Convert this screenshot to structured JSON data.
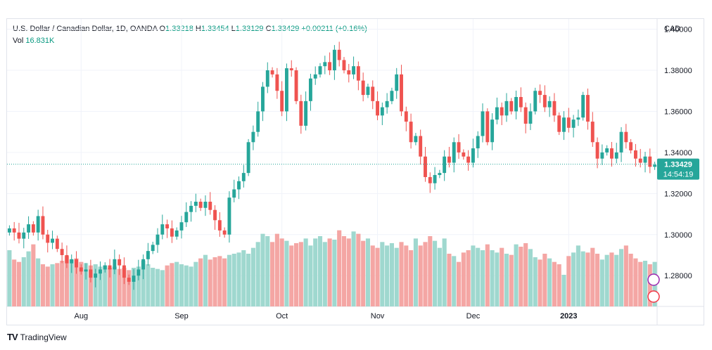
{
  "header": {
    "symbol": "U.S. Dollar / Canadian Dollar, 1D, OANDA",
    "o_label": "O",
    "o_value": "1.33218",
    "h_label": "H",
    "h_value": "1.33454",
    "l_label": "L",
    "l_value": "1.33129",
    "c_label": "C",
    "c_value": "1.33429",
    "change": "+0.00211 (+0.16%)",
    "vol_label": "Vol",
    "vol_value": "16.831K"
  },
  "footer": {
    "brand": "TradingView",
    "logo": "TV"
  },
  "colors": {
    "up": "#26a69a",
    "down": "#ef5350",
    "vol_up": "#9fd8cf",
    "vol_down": "#f4a6a4",
    "grid": "#f0f3fa",
    "text": "#131722"
  },
  "price_badge": {
    "price": "1.33429",
    "countdown": "14:54:19"
  },
  "chart_data": {
    "type": "candlestick",
    "currency": "CAD",
    "ylim": [
      1.265,
      1.405
    ],
    "yticks": [
      "1.40000",
      "1.38000",
      "1.36000",
      "1.34000",
      "1.32000",
      "1.30000",
      "1.28000"
    ],
    "xticks": [
      {
        "label": "Aug",
        "index": 15
      },
      {
        "label": "Sep",
        "index": 36
      },
      {
        "label": "Oct",
        "index": 57
      },
      {
        "label": "Nov",
        "index": 77
      },
      {
        "label": "Dec",
        "index": 97
      },
      {
        "label": "2023",
        "index": 117
      }
    ],
    "last_price": 1.33429,
    "closes": [
      1.303,
      1.301,
      1.298,
      1.301,
      1.305,
      1.301,
      1.309,
      1.3,
      1.296,
      1.298,
      1.293,
      1.29,
      1.286,
      1.288,
      1.284,
      1.282,
      1.283,
      1.279,
      1.281,
      1.283,
      1.285,
      1.283,
      1.288,
      1.285,
      1.279,
      1.277,
      1.28,
      1.283,
      1.288,
      1.292,
      1.295,
      1.3,
      1.305,
      1.303,
      1.299,
      1.302,
      1.306,
      1.311,
      1.314,
      1.316,
      1.313,
      1.316,
      1.312,
      1.307,
      1.302,
      1.3,
      1.318,
      1.322,
      1.326,
      1.33,
      1.345,
      1.35,
      1.36,
      1.372,
      1.38,
      1.378,
      1.37,
      1.36,
      1.381,
      1.38,
      1.365,
      1.353,
      1.365,
      1.376,
      1.378,
      1.382,
      1.384,
      1.38,
      1.39,
      1.385,
      1.38,
      1.378,
      1.382,
      1.375,
      1.368,
      1.372,
      1.365,
      1.358,
      1.362,
      1.365,
      1.37,
      1.378,
      1.36,
      1.355,
      1.345,
      1.348,
      1.338,
      1.328,
      1.325,
      1.329,
      1.33,
      1.338,
      1.335,
      1.345,
      1.34,
      1.338,
      1.335,
      1.342,
      1.348,
      1.36,
      1.345,
      1.356,
      1.362,
      1.358,
      1.365,
      1.36,
      1.367,
      1.362,
      1.354,
      1.36,
      1.37,
      1.368,
      1.362,
      1.365,
      1.358,
      1.35,
      1.357,
      1.352,
      1.356,
      1.357,
      1.368,
      1.355,
      1.345,
      1.337,
      1.34,
      1.342,
      1.337,
      1.34,
      1.35,
      1.345,
      1.341,
      1.337,
      1.335,
      1.338,
      1.333,
      1.334
    ],
    "volumes": [
      0.48,
      0.4,
      0.38,
      0.42,
      0.47,
      0.53,
      0.41,
      0.36,
      0.34,
      0.36,
      0.37,
      0.39,
      0.43,
      0.4,
      0.41,
      0.38,
      0.37,
      0.35,
      0.36,
      0.34,
      0.35,
      0.33,
      0.34,
      0.32,
      0.33,
      0.31,
      0.33,
      0.34,
      0.39,
      0.36,
      0.33,
      0.32,
      0.31,
      0.35,
      0.37,
      0.38,
      0.36,
      0.35,
      0.34,
      0.38,
      0.41,
      0.44,
      0.4,
      0.42,
      0.43,
      0.41,
      0.44,
      0.45,
      0.46,
      0.48,
      0.45,
      0.5,
      0.55,
      0.62,
      0.6,
      0.55,
      0.62,
      0.58,
      0.56,
      0.52,
      0.54,
      0.55,
      0.58,
      0.52,
      0.58,
      0.6,
      0.55,
      0.58,
      0.57,
      0.65,
      0.6,
      0.58,
      0.64,
      0.62,
      0.56,
      0.58,
      0.52,
      0.5,
      0.55,
      0.52,
      0.54,
      0.5,
      0.55,
      0.52,
      0.48,
      0.58,
      0.52,
      0.55,
      0.6,
      0.56,
      0.5,
      0.58,
      0.45,
      0.43,
      0.38,
      0.46,
      0.48,
      0.52,
      0.5,
      0.48,
      0.53,
      0.48,
      0.46,
      0.5,
      0.45,
      0.44,
      0.53,
      0.51,
      0.54,
      0.49,
      0.42,
      0.4,
      0.45,
      0.41,
      0.38,
      0.36,
      0.27,
      0.43,
      0.46,
      0.52,
      0.47,
      0.46,
      0.5,
      0.45,
      0.4,
      0.44,
      0.46,
      0.44,
      0.49,
      0.52,
      0.45,
      0.41,
      0.38,
      0.39,
      0.36,
      0.38
    ]
  }
}
